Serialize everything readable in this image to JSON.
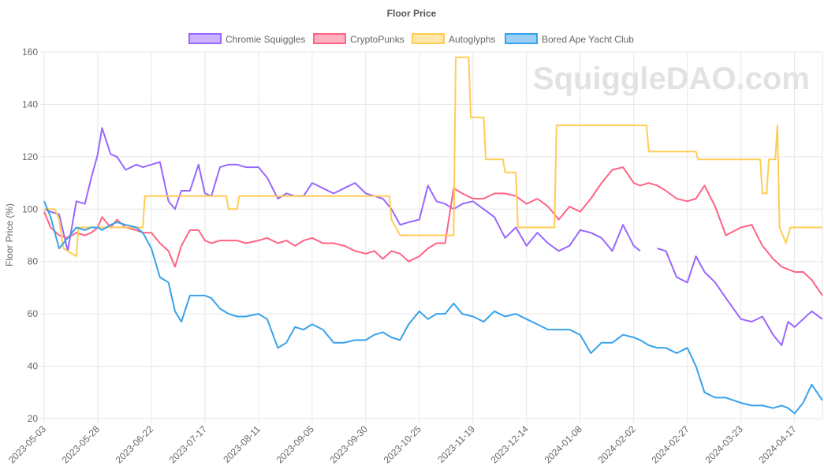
{
  "chart_data": {
    "type": "line",
    "title": "Floor Price",
    "ylabel": "Floor Price (%)",
    "xlabel": "",
    "watermark": "SquiggleDAO.com",
    "ylim": [
      20,
      160
    ],
    "yticks": [
      20,
      40,
      60,
      80,
      100,
      120,
      140,
      160
    ],
    "xlim": [
      "2023-05-03",
      "2024-04-30"
    ],
    "xticks": [
      "2023-05-03",
      "2023-05-28",
      "2023-06-22",
      "2023-07-17",
      "2023-08-11",
      "2023-09-05",
      "2023-09-30",
      "2023-10-25",
      "2023-11-19",
      "2023-12-14",
      "2024-01-08",
      "2024-02-02",
      "2024-02-27",
      "2024-03-23",
      "2024-04-17"
    ],
    "grid": true,
    "legend_position": "top",
    "series": [
      {
        "name": "Chromie Squiggles",
        "color": "#9966ff",
        "x": [
          "2023-05-03",
          "2023-05-06",
          "2023-05-10",
          "2023-05-14",
          "2023-05-18",
          "2023-05-22",
          "2023-05-25",
          "2023-05-28",
          "2023-05-30",
          "2023-06-03",
          "2023-06-06",
          "2023-06-10",
          "2023-06-15",
          "2023-06-18",
          "2023-06-22",
          "2023-06-26",
          "2023-06-30",
          "2023-07-03",
          "2023-07-06",
          "2023-07-10",
          "2023-07-14",
          "2023-07-17",
          "2023-07-20",
          "2023-07-24",
          "2023-07-28",
          "2023-08-01",
          "2023-08-05",
          "2023-08-11",
          "2023-08-15",
          "2023-08-20",
          "2023-08-24",
          "2023-08-28",
          "2023-09-01",
          "2023-09-05",
          "2023-09-10",
          "2023-09-15",
          "2023-09-20",
          "2023-09-25",
          "2023-09-30",
          "2023-10-04",
          "2023-10-08",
          "2023-10-12",
          "2023-10-16",
          "2023-10-20",
          "2023-10-25",
          "2023-10-29",
          "2023-11-02",
          "2023-11-06",
          "2023-11-10",
          "2023-11-14",
          "2023-11-19",
          "2023-11-24",
          "2023-11-29",
          "2023-12-04",
          "2023-12-09",
          "2023-12-14",
          "2023-12-19",
          "2023-12-24",
          "2023-12-29",
          "2024-01-03",
          "2024-01-08",
          "2024-01-13",
          "2024-01-18",
          "2024-01-23",
          "2024-01-28",
          "2024-02-02",
          "2024-02-05",
          "2024-02-09",
          "2024-02-13",
          "2024-02-17",
          "2024-02-22",
          "2024-02-27",
          "2024-03-02",
          "2024-03-06",
          "2024-03-11",
          "2024-03-16",
          "2024-03-23",
          "2024-03-28",
          "2024-04-02",
          "2024-04-07",
          "2024-04-11",
          "2024-04-14",
          "2024-04-17",
          "2024-04-21",
          "2024-04-25",
          "2024-04-30"
        ],
        "values": [
          100,
          99,
          98,
          84,
          103,
          102,
          112,
          121,
          131,
          121,
          120,
          115,
          117,
          116,
          117,
          118,
          103,
          100,
          107,
          107,
          117,
          106,
          105,
          116,
          117,
          117,
          116,
          116,
          112,
          104,
          106,
          105,
          105,
          110,
          108,
          106,
          108,
          110,
          106,
          105,
          104,
          100,
          94,
          95,
          96,
          109,
          103,
          102,
          100,
          102,
          103,
          100,
          97,
          89,
          93,
          86,
          91,
          87,
          84,
          86,
          92,
          91,
          89,
          84,
          94,
          86,
          84,
          null,
          85,
          84,
          74,
          72,
          82,
          76,
          72,
          66,
          58,
          57,
          59,
          52,
          48,
          57,
          55,
          58,
          61,
          58
        ],
        "_idx": 0
      },
      {
        "name": "CryptoPunks",
        "color": "#ff6384",
        "x": [
          "2023-05-03",
          "2023-05-06",
          "2023-05-10",
          "2023-05-14",
          "2023-05-18",
          "2023-05-22",
          "2023-05-25",
          "2023-05-28",
          "2023-05-30",
          "2023-06-03",
          "2023-06-06",
          "2023-06-10",
          "2023-06-15",
          "2023-06-18",
          "2023-06-22",
          "2023-06-26",
          "2023-06-30",
          "2023-07-03",
          "2023-07-06",
          "2023-07-10",
          "2023-07-14",
          "2023-07-17",
          "2023-07-20",
          "2023-07-24",
          "2023-07-28",
          "2023-08-01",
          "2023-08-05",
          "2023-08-11",
          "2023-08-15",
          "2023-08-20",
          "2023-08-24",
          "2023-08-28",
          "2023-09-01",
          "2023-09-05",
          "2023-09-10",
          "2023-09-15",
          "2023-09-20",
          "2023-09-25",
          "2023-09-30",
          "2023-10-04",
          "2023-10-08",
          "2023-10-12",
          "2023-10-16",
          "2023-10-20",
          "2023-10-25",
          "2023-10-29",
          "2023-11-02",
          "2023-11-06",
          "2023-11-10",
          "2023-11-14",
          "2023-11-19",
          "2023-11-24",
          "2023-11-29",
          "2023-12-04",
          "2023-12-09",
          "2023-12-14",
          "2023-12-19",
          "2023-12-24",
          "2023-12-29",
          "2024-01-03",
          "2024-01-08",
          "2024-01-13",
          "2024-01-18",
          "2024-01-23",
          "2024-01-28",
          "2024-02-02",
          "2024-02-05",
          "2024-02-09",
          "2024-02-13",
          "2024-02-17",
          "2024-02-22",
          "2024-02-27",
          "2024-03-02",
          "2024-03-06",
          "2024-03-11",
          "2024-03-16",
          "2024-03-23",
          "2024-03-28",
          "2024-04-02",
          "2024-04-07",
          "2024-04-11",
          "2024-04-14",
          "2024-04-17",
          "2024-04-21",
          "2024-04-25",
          "2024-04-30"
        ],
        "values": [
          99,
          93,
          90,
          89,
          91,
          90,
          91,
          93,
          97,
          93,
          96,
          93,
          92,
          91,
          91,
          87,
          84,
          78,
          86,
          92,
          92,
          88,
          87,
          88,
          88,
          88,
          87,
          88,
          89,
          87,
          88,
          86,
          88,
          89,
          87,
          87,
          86,
          84,
          83,
          84,
          81,
          84,
          83,
          80,
          82,
          85,
          87,
          87,
          108,
          106,
          104,
          104,
          106,
          106,
          105,
          102,
          104,
          101,
          96,
          101,
          99,
          104,
          110,
          115,
          116,
          110,
          109,
          110,
          109,
          107,
          104,
          103,
          104,
          109,
          101,
          90,
          93,
          94,
          86,
          81,
          78,
          77,
          76,
          76,
          73,
          67
        ]
      },
      {
        "name": "Autoglyphs",
        "color": "#ffcd56",
        "x": [
          "2023-05-03",
          "2023-05-08",
          "2023-05-10",
          "2023-05-12",
          "2023-05-18",
          "2023-05-19",
          "2023-06-18",
          "2023-06-19",
          "2023-07-27",
          "2023-07-28",
          "2023-08-01",
          "2023-08-02",
          "2023-10-11",
          "2023-10-12",
          "2023-10-16",
          "2023-10-17",
          "2023-11-10",
          "2023-11-11",
          "2023-11-17",
          "2023-11-18",
          "2023-11-24",
          "2023-11-25",
          "2023-12-03",
          "2023-12-04",
          "2023-12-09",
          "2023-12-10",
          "2023-12-27",
          "2023-12-28",
          "2024-02-08",
          "2024-02-09",
          "2024-03-02",
          "2024-03-03",
          "2024-04-01",
          "2024-04-02",
          "2024-04-04",
          "2024-04-05",
          "2024-04-08",
          "2024-04-09",
          "2024-04-10",
          "2024-04-13",
          "2024-04-15",
          "2024-04-17",
          "2024-04-30"
        ],
        "values": [
          100,
          100,
          96,
          85,
          82,
          93,
          93,
          105,
          105,
          100,
          100,
          105,
          105,
          96,
          90,
          90,
          90,
          158,
          158,
          135,
          135,
          119,
          119,
          114,
          114,
          93,
          93,
          132,
          132,
          122,
          122,
          119,
          119,
          106,
          106,
          119,
          119,
          132,
          93,
          87,
          93,
          93,
          93
        ]
      },
      {
        "name": "Bored Ape Yacht Club",
        "color": "#36a2eb",
        "x": [
          "2023-05-03",
          "2023-05-06",
          "2023-05-10",
          "2023-05-14",
          "2023-05-18",
          "2023-05-22",
          "2023-05-25",
          "2023-05-28",
          "2023-05-30",
          "2023-06-03",
          "2023-06-06",
          "2023-06-10",
          "2023-06-15",
          "2023-06-18",
          "2023-06-22",
          "2023-06-26",
          "2023-06-30",
          "2023-07-03",
          "2023-07-06",
          "2023-07-10",
          "2023-07-14",
          "2023-07-17",
          "2023-07-20",
          "2023-07-24",
          "2023-07-28",
          "2023-08-01",
          "2023-08-05",
          "2023-08-11",
          "2023-08-15",
          "2023-08-20",
          "2023-08-24",
          "2023-08-28",
          "2023-09-01",
          "2023-09-05",
          "2023-09-10",
          "2023-09-15",
          "2023-09-20",
          "2023-09-25",
          "2023-09-30",
          "2023-10-04",
          "2023-10-08",
          "2023-10-12",
          "2023-10-16",
          "2023-10-20",
          "2023-10-25",
          "2023-10-29",
          "2023-11-02",
          "2023-11-06",
          "2023-11-10",
          "2023-11-14",
          "2023-11-19",
          "2023-11-24",
          "2023-11-29",
          "2023-12-04",
          "2023-12-09",
          "2023-12-14",
          "2023-12-19",
          "2023-12-24",
          "2023-12-29",
          "2024-01-03",
          "2024-01-08",
          "2024-01-13",
          "2024-01-18",
          "2024-01-23",
          "2024-01-28",
          "2024-02-02",
          "2024-02-05",
          "2024-02-09",
          "2024-02-13",
          "2024-02-17",
          "2024-02-22",
          "2024-02-27",
          "2024-03-02",
          "2024-03-06",
          "2024-03-11",
          "2024-03-16",
          "2024-03-23",
          "2024-03-28",
          "2024-04-02",
          "2024-04-07",
          "2024-04-11",
          "2024-04-14",
          "2024-04-17",
          "2024-04-21",
          "2024-04-25",
          "2024-04-30"
        ],
        "values": [
          103,
          97,
          85,
          89,
          93,
          92,
          93,
          93,
          92,
          94,
          95,
          94,
          93,
          91,
          85,
          74,
          72,
          61,
          57,
          67,
          67,
          67,
          66,
          62,
          60,
          59,
          59,
          60,
          58,
          47,
          49,
          55,
          54,
          56,
          54,
          49,
          49,
          50,
          50,
          52,
          53,
          51,
          50,
          56,
          61,
          58,
          60,
          60,
          64,
          60,
          59,
          57,
          61,
          59,
          60,
          58,
          56,
          54,
          54,
          54,
          52,
          45,
          49,
          49,
          52,
          51,
          50,
          48,
          47,
          47,
          45,
          47,
          40,
          30,
          28,
          28,
          26,
          25,
          25,
          24,
          25,
          24,
          22,
          26,
          33,
          27
        ]
      }
    ]
  }
}
